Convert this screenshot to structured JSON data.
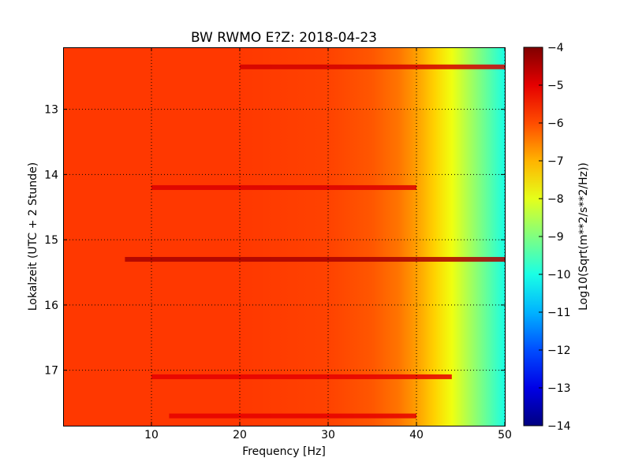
{
  "chart_data": {
    "type": "heatmap",
    "title": "BW RWMO E?Z: 2018-04-23",
    "xlabel": "Frequency [Hz]",
    "ylabel": "Lokalzeit (UTC + 2 Stunde)",
    "xlim": [
      0,
      50
    ],
    "ylim": [
      17.85,
      12.05
    ],
    "x_ticks": [
      10,
      20,
      30,
      40,
      50
    ],
    "x_tick_labels": [
      "10",
      "20",
      "30",
      "40",
      "50"
    ],
    "y_ticks": [
      13,
      14,
      15,
      16,
      17
    ],
    "y_tick_labels": [
      "13",
      "14",
      "15",
      "16",
      "17"
    ],
    "y_inverted": true,
    "grid": true,
    "colormap": "jet",
    "colorbar": {
      "label": "Log10(Sqrt(m**2/s**2/Hz))",
      "range": [
        -14,
        -4
      ],
      "ticks": [
        -4,
        -5,
        -6,
        -7,
        -8,
        -9,
        -10,
        -11,
        -12,
        -13,
        -14
      ],
      "tick_labels": [
        "−4",
        "−5",
        "−6",
        "−7",
        "−8",
        "−9",
        "−10",
        "−11",
        "−12",
        "−13",
        "−14"
      ]
    },
    "base_level_by_frequency": [
      {
        "f": 0,
        "v": -5.8
      },
      {
        "f": 20,
        "v": -5.8
      },
      {
        "f": 30,
        "v": -5.9
      },
      {
        "f": 35,
        "v": -6.1
      },
      {
        "f": 38,
        "v": -6.4
      },
      {
        "f": 40,
        "v": -6.8
      },
      {
        "f": 42,
        "v": -7.3
      },
      {
        "f": 44,
        "v": -7.9
      },
      {
        "f": 46,
        "v": -8.6
      },
      {
        "f": 48,
        "v": -9.3
      },
      {
        "f": 50,
        "v": -10.0
      }
    ],
    "strong_bands": [
      {
        "time": 12.35,
        "f_from": 20,
        "f_to": 50,
        "v": -4.8
      },
      {
        "time": 14.2,
        "f_from": 10,
        "f_to": 40,
        "v": -4.9
      },
      {
        "time": 15.3,
        "f_from": 7,
        "f_to": 50,
        "v": -4.4
      },
      {
        "time": 17.1,
        "f_from": 10,
        "f_to": 44,
        "v": -5.0
      },
      {
        "time": 17.7,
        "f_from": 12,
        "f_to": 40,
        "v": -5.0
      }
    ]
  }
}
